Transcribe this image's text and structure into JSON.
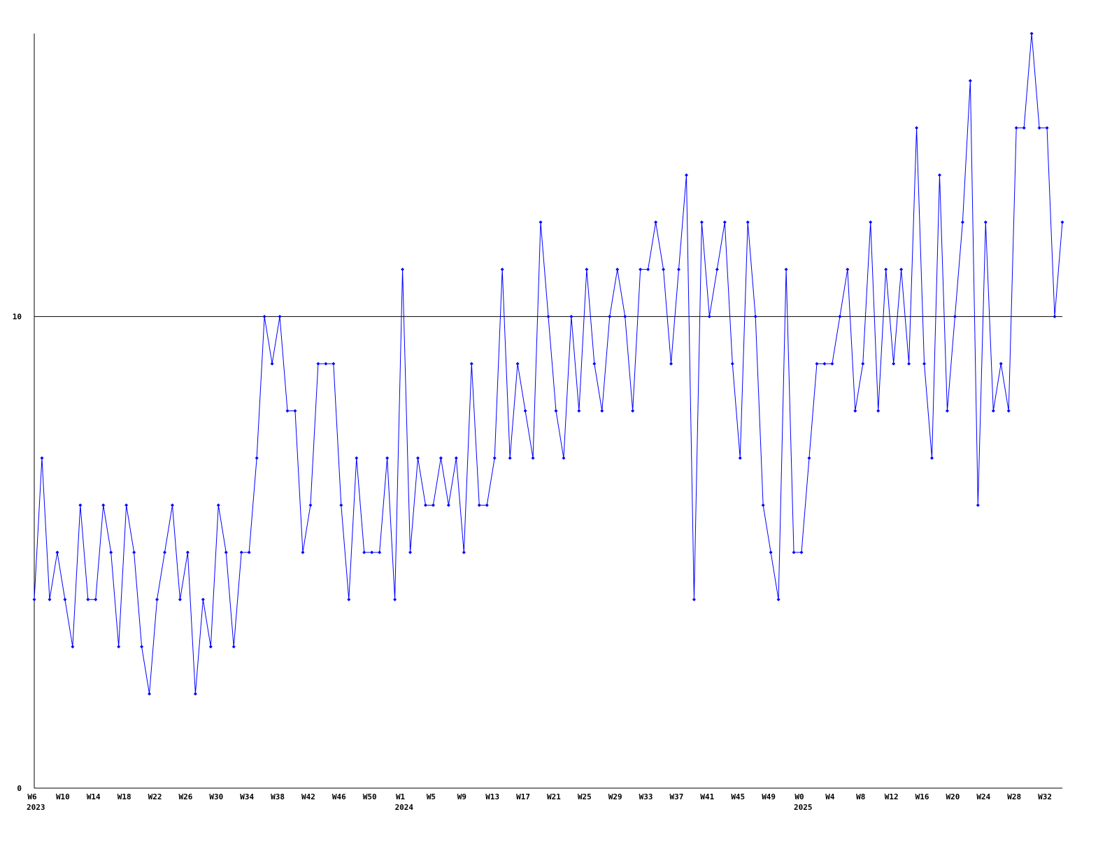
{
  "chart_data": {
    "type": "line",
    "categories": [
      "W6",
      null,
      null,
      null,
      "W10",
      null,
      null,
      null,
      "W14",
      null,
      null,
      null,
      "W18",
      null,
      null,
      null,
      "W22",
      null,
      null,
      null,
      "W26",
      null,
      null,
      null,
      "W30",
      null,
      null,
      null,
      "W34",
      null,
      null,
      null,
      "W38",
      null,
      null,
      null,
      "W42",
      null,
      null,
      null,
      "W46",
      null,
      null,
      null,
      "W50",
      null,
      null,
      null,
      "W1",
      null,
      null,
      null,
      "W5",
      null,
      null,
      null,
      "W9",
      null,
      null,
      null,
      "W13",
      null,
      null,
      null,
      "W17",
      null,
      null,
      null,
      "W21",
      null,
      null,
      null,
      "W25",
      null,
      null,
      null,
      "W29",
      null,
      null,
      null,
      "W33",
      null,
      null,
      null,
      "W37",
      null,
      null,
      null,
      "W41",
      null,
      null,
      null,
      "W45",
      null,
      null,
      null,
      "W49",
      null,
      null,
      null,
      "W0",
      null,
      null,
      null,
      "W4",
      null,
      null,
      null,
      "W8",
      null,
      null,
      null,
      "W12",
      null,
      null,
      null,
      "W16",
      null,
      null,
      null,
      "W20",
      null,
      null,
      null,
      "W24",
      null,
      null,
      null,
      "W28",
      null,
      null,
      null,
      "W32",
      null,
      null
    ],
    "years": [
      "2023",
      null,
      null,
      null,
      null,
      null,
      null,
      null,
      null,
      null,
      null,
      null,
      null,
      null,
      null,
      null,
      null,
      null,
      null,
      null,
      null,
      null,
      null,
      null,
      null,
      null,
      null,
      null,
      null,
      null,
      null,
      null,
      null,
      null,
      null,
      null,
      null,
      null,
      null,
      null,
      null,
      null,
      null,
      null,
      null,
      null,
      null,
      null,
      "2024",
      null,
      null,
      null,
      null,
      null,
      null,
      null,
      null,
      null,
      null,
      null,
      null,
      null,
      null,
      null,
      null,
      null,
      null,
      null,
      null,
      null,
      null,
      null,
      null,
      null,
      null,
      null,
      null,
      null,
      null,
      null,
      null,
      null,
      null,
      null,
      null,
      null,
      null,
      null,
      null,
      null,
      null,
      null,
      null,
      null,
      null,
      null,
      null,
      null,
      null,
      null,
      "2025",
      null,
      null,
      null,
      null,
      null,
      null,
      null,
      null,
      null,
      null,
      null,
      null,
      null,
      null,
      null,
      null,
      null,
      null,
      null,
      null,
      null,
      null,
      null,
      null,
      null,
      null,
      null,
      null,
      null,
      null,
      null,
      null,
      null,
      null
    ],
    "series": [
      {
        "color": "#0000ff",
        "values": [
          4,
          7,
          4,
          5,
          4,
          3,
          6,
          4,
          4,
          6,
          5,
          3,
          6,
          5,
          3,
          2,
          4,
          5,
          6,
          4,
          5,
          2,
          4,
          3,
          6,
          5,
          3,
          5,
          5,
          7,
          10,
          9,
          10,
          8,
          8,
          5,
          6,
          9,
          9,
          9,
          6,
          4,
          7,
          5,
          5,
          5,
          7,
          4,
          11,
          5,
          7,
          6,
          6,
          7,
          6,
          7,
          5,
          9,
          6,
          6,
          7,
          11,
          7,
          9,
          8,
          7,
          12,
          10,
          8,
          7,
          10,
          8,
          11,
          9,
          8,
          10,
          11,
          10,
          8,
          11,
          11,
          12,
          11,
          9,
          11,
          13,
          4,
          12,
          10,
          11,
          12,
          9,
          7,
          12,
          10,
          6,
          5,
          4,
          11,
          5,
          5,
          7,
          9,
          9,
          9,
          10,
          11,
          8,
          9,
          12,
          8,
          11,
          9,
          11,
          9,
          14,
          9,
          7,
          13,
          8,
          10,
          12,
          15,
          6,
          12,
          8,
          9,
          8,
          14,
          14,
          16,
          14,
          14,
          10,
          12
        ]
      }
    ],
    "ylim": [
      0,
      16
    ],
    "yticks": [
      0,
      10
    ],
    "grid": true
  }
}
